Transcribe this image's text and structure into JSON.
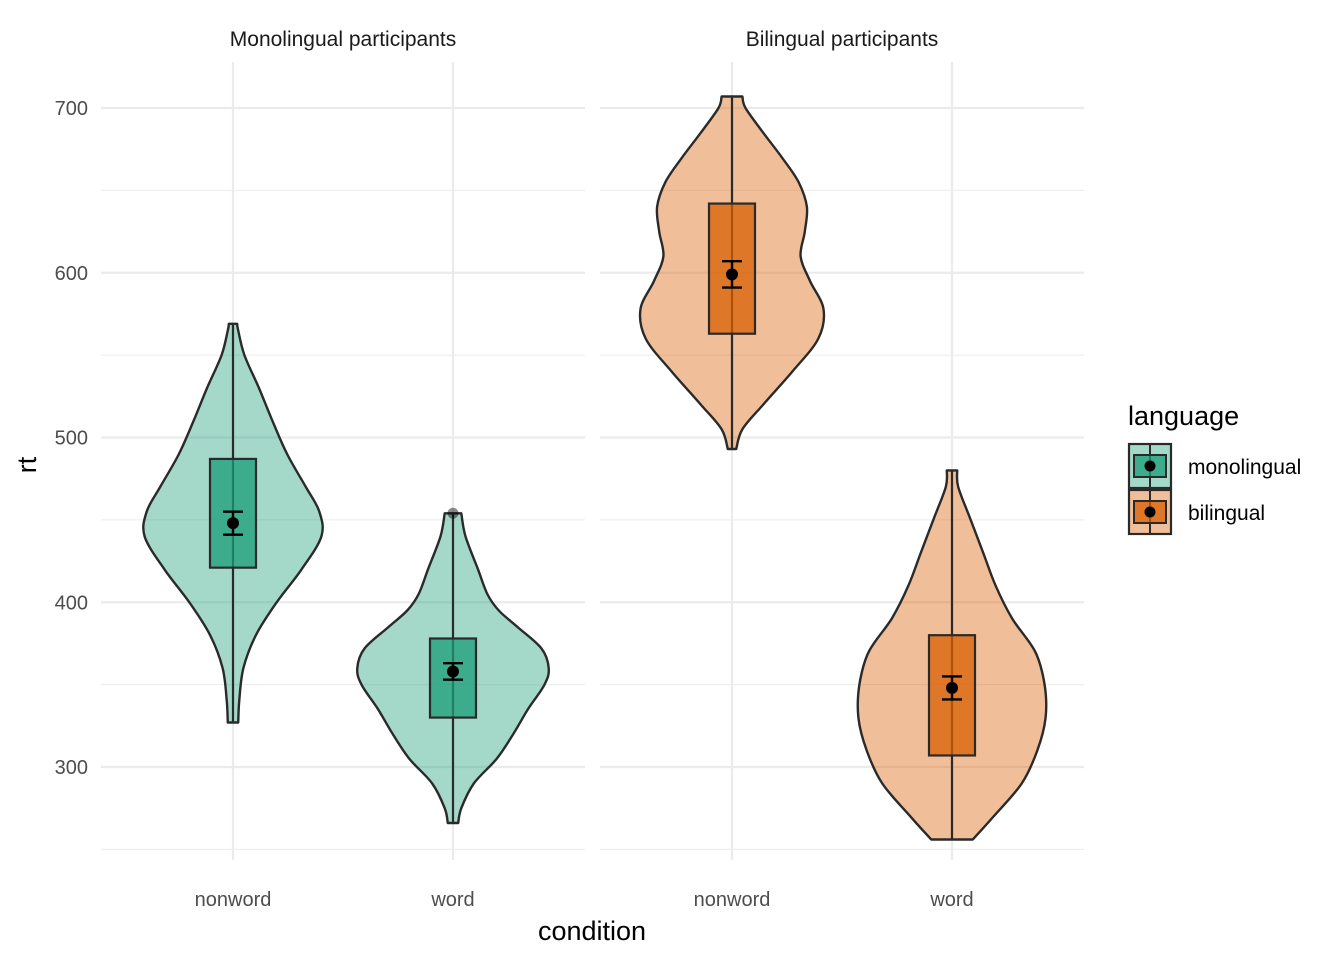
{
  "chart_data": {
    "type": "violin",
    "xlabel": "condition",
    "ylabel": "rt",
    "categories": [
      "nonword",
      "word"
    ],
    "ylim": [
      240,
      725
    ],
    "yticks": [
      300,
      400,
      500,
      600,
      700
    ],
    "grid": true,
    "legend": {
      "title": "language",
      "position": "right",
      "entries": [
        {
          "name": "monolingual",
          "color": "#1b9e77"
        },
        {
          "name": "bilingual",
          "color": "#d95f02"
        }
      ]
    },
    "panels": [
      {
        "title": "Monolingual participants",
        "language": "monolingual",
        "groups": [
          {
            "condition": "nonword",
            "violin_range": [
              327,
              569
            ],
            "box": {
              "q1": 421,
              "median": 448,
              "q3": 487
            },
            "mean": 448,
            "ci": [
              441,
              455
            ],
            "outliers": [],
            "density": [
              [
                327,
                0.05
              ],
              [
                340,
                0.06
              ],
              [
                360,
                0.1
              ],
              [
                380,
                0.22
              ],
              [
                400,
                0.42
              ],
              [
                420,
                0.66
              ],
              [
                440,
                0.85
              ],
              [
                455,
                0.83
              ],
              [
                470,
                0.7
              ],
              [
                490,
                0.52
              ],
              [
                510,
                0.38
              ],
              [
                530,
                0.25
              ],
              [
                550,
                0.11
              ],
              [
                565,
                0.05
              ],
              [
                569,
                0.04
              ]
            ]
          },
          {
            "condition": "word",
            "violin_range": [
              266,
              454
            ],
            "box": {
              "q1": 330,
              "median": 352,
              "q3": 378
            },
            "mean": 358,
            "ci": [
              353,
              363
            ],
            "outliers": [
              454
            ],
            "density": [
              [
                266,
                0.05
              ],
              [
                275,
                0.08
              ],
              [
                290,
                0.2
              ],
              [
                305,
                0.42
              ],
              [
                320,
                0.58
              ],
              [
                335,
                0.72
              ],
              [
                350,
                0.88
              ],
              [
                360,
                0.92
              ],
              [
                372,
                0.85
              ],
              [
                385,
                0.62
              ],
              [
                395,
                0.44
              ],
              [
                405,
                0.33
              ],
              [
                420,
                0.24
              ],
              [
                440,
                0.12
              ],
              [
                454,
                0.08
              ]
            ]
          }
        ]
      },
      {
        "title": "Bilingual participants",
        "language": "bilingual",
        "groups": [
          {
            "condition": "nonword",
            "violin_range": [
              493,
              707
            ],
            "box": {
              "q1": 563,
              "median": 599,
              "q3": 642
            },
            "mean": 599,
            "ci": [
              591,
              607
            ],
            "outliers": [],
            "density": [
              [
                493,
                0.04
              ],
              [
                505,
                0.1
              ],
              [
                520,
                0.3
              ],
              [
                540,
                0.58
              ],
              [
                560,
                0.83
              ],
              [
                578,
                0.88
              ],
              [
                595,
                0.75
              ],
              [
                610,
                0.66
              ],
              [
                625,
                0.7
              ],
              [
                640,
                0.72
              ],
              [
                655,
                0.64
              ],
              [
                670,
                0.48
              ],
              [
                685,
                0.3
              ],
              [
                700,
                0.13
              ],
              [
                707,
                0.1
              ]
            ]
          },
          {
            "condition": "word",
            "violin_range": [
              256,
              480
            ],
            "box": {
              "q1": 307,
              "median": 352,
              "q3": 380
            },
            "mean": 348,
            "ci": [
              341,
              355
            ],
            "outliers": [],
            "density": [
              [
                256,
                0.2
              ],
              [
                270,
                0.4
              ],
              [
                290,
                0.67
              ],
              [
                310,
                0.82
              ],
              [
                330,
                0.9
              ],
              [
                350,
                0.89
              ],
              [
                370,
                0.8
              ],
              [
                390,
                0.58
              ],
              [
                410,
                0.42
              ],
              [
                430,
                0.3
              ],
              [
                450,
                0.18
              ],
              [
                470,
                0.06
              ],
              [
                480,
                0.05
              ]
            ]
          }
        ]
      }
    ]
  }
}
